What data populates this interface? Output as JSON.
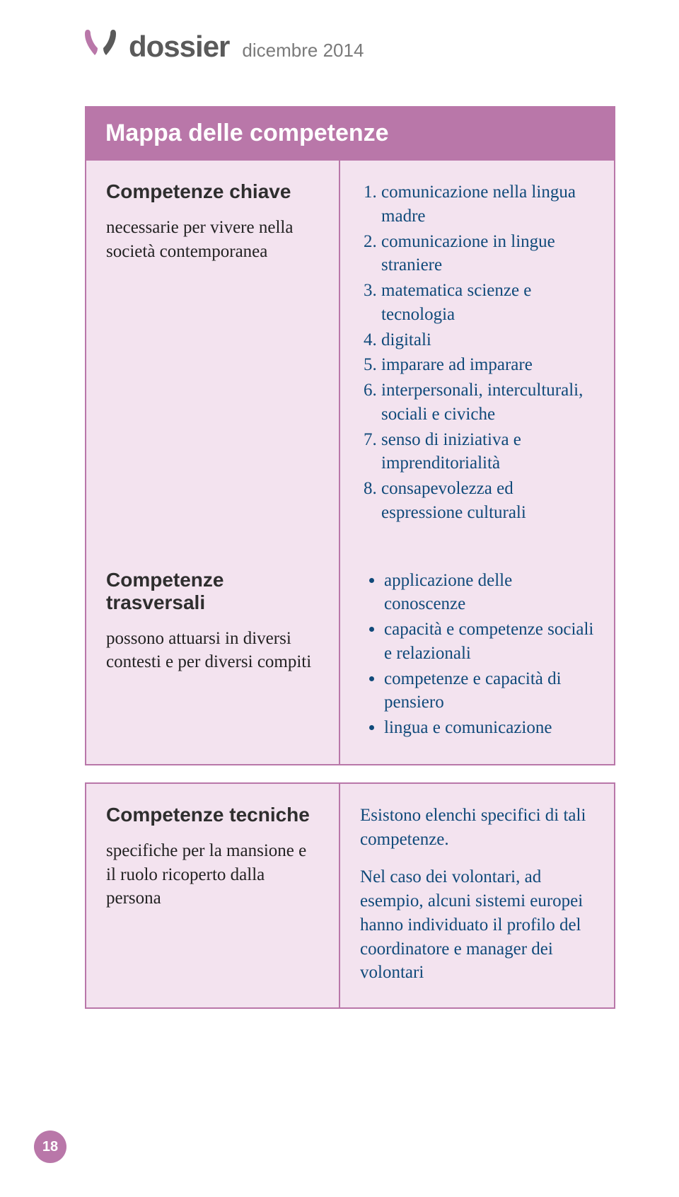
{
  "colors": {
    "accent": "#b977a9",
    "cell_bg": "#f3e3ef",
    "body_text": "#104a7a",
    "heading_text": "#2e2e2e",
    "brand_text": "#5a5a5a",
    "date_text": "#7a7a7a"
  },
  "header": {
    "brand": "dossier",
    "date": "dicembre 2014"
  },
  "title": "Mappa delle competenze",
  "row1": {
    "left": {
      "heading": "Competenze chiave",
      "text": "necessarie per vivere nella società contemporanea"
    },
    "right": [
      "comunicazione nella lingua madre",
      "comunicazione in lingue straniere",
      "matematica scienze e tecnologia",
      "digitali",
      "imparare ad imparare",
      "interpersonali, interculturali, sociali e civiche",
      "senso di iniziativa e imprenditorialità",
      "consapevolezza ed espressione culturali"
    ]
  },
  "row2": {
    "left": {
      "heading": "Competenze trasversali",
      "text": "possono attuarsi in diversi contesti e per diversi compiti"
    },
    "right": [
      "applicazione delle conoscenze",
      "capacità e competenze sociali e relazionali",
      "competenze e capacità di pensiero",
      "lingua e comunicazione"
    ]
  },
  "row3": {
    "left": {
      "heading": "Competenze tecniche",
      "text": "specifiche per la mansione e il ruolo ricoperto dalla persona"
    },
    "right": {
      "p1": "Esistono elenchi specifici di tali competenze.",
      "p2": "Nel caso dei volontari, ad esempio, alcuni sistemi europei hanno individuato il profilo del coordinatore e manager dei volontari"
    }
  },
  "page_number": "18"
}
